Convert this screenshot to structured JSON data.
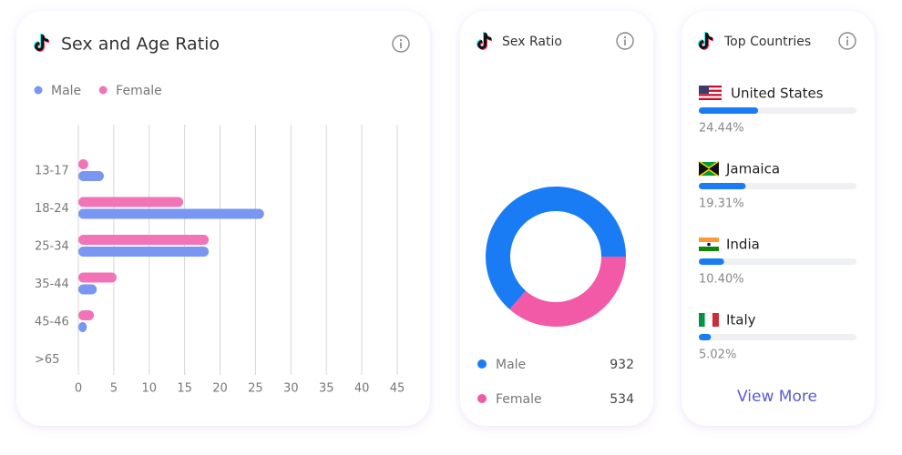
{
  "chart_data": [
    {
      "type": "bar",
      "orientation": "horizontal",
      "title": "Sex and Age Ratio",
      "categories": [
        "13-17",
        "18-24",
        "25-34",
        "35-44",
        "45-46",
        ">65"
      ],
      "series": [
        {
          "name": "Male",
          "color": "#7896f2",
          "values": [
            3.6,
            26.2,
            18.4,
            2.6,
            1.2,
            0
          ]
        },
        {
          "name": "Female",
          "color": "#f274b6",
          "values": [
            1.4,
            14.8,
            18.4,
            5.4,
            2.2,
            0
          ]
        }
      ],
      "xlim": [
        0,
        45
      ],
      "xticks": [
        0,
        5,
        10,
        15,
        20,
        25,
        30,
        35,
        40,
        45
      ],
      "grid": true,
      "legend": "top-left"
    },
    {
      "type": "pie",
      "title": "Sex Ratio",
      "categories": [
        "Male",
        "Female"
      ],
      "values": [
        932,
        534
      ],
      "colors": [
        "#1a7cf5",
        "#f25aa8"
      ],
      "donut": true
    },
    {
      "type": "progress",
      "title": "Top Countries",
      "categories": [
        "United States",
        "Jamaica",
        "India",
        "Italy"
      ],
      "values": [
        24.44,
        19.31,
        10.4,
        5.02
      ],
      "value_labels": [
        "24.44%",
        "19.31%",
        "10.40%",
        "5.02%"
      ],
      "color": "#1a7cf5",
      "xlim": [
        0,
        65
      ]
    }
  ],
  "link": "View More"
}
